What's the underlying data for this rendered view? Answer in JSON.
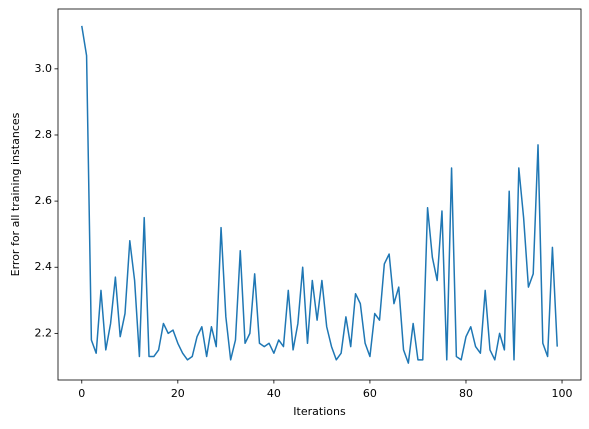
{
  "chart_data": {
    "type": "line",
    "xlabel": "Iterations",
    "ylabel": "Error for all training instances",
    "x": [
      0,
      1,
      2,
      3,
      4,
      5,
      6,
      7,
      8,
      9,
      10,
      11,
      12,
      13,
      14,
      15,
      16,
      17,
      18,
      19,
      20,
      21,
      22,
      23,
      24,
      25,
      26,
      27,
      28,
      29,
      30,
      31,
      32,
      33,
      34,
      35,
      36,
      37,
      38,
      39,
      40,
      41,
      42,
      43,
      44,
      45,
      46,
      47,
      48,
      49,
      50,
      51,
      52,
      53,
      54,
      55,
      56,
      57,
      58,
      59,
      60,
      61,
      62,
      63,
      64,
      65,
      66,
      67,
      68,
      69,
      70,
      71,
      72,
      73,
      74,
      75,
      76,
      77,
      78,
      79,
      80,
      81,
      82,
      83,
      84,
      85,
      86,
      87,
      88,
      89,
      90,
      91,
      92,
      93,
      94,
      95,
      96,
      97,
      98,
      99
    ],
    "values": [
      3.13,
      3.04,
      2.18,
      2.14,
      2.33,
      2.15,
      2.23,
      2.37,
      2.19,
      2.26,
      2.48,
      2.36,
      2.13,
      2.55,
      2.13,
      2.13,
      2.15,
      2.23,
      2.2,
      2.21,
      2.17,
      2.14,
      2.12,
      2.13,
      2.19,
      2.22,
      2.13,
      2.22,
      2.16,
      2.52,
      2.25,
      2.12,
      2.18,
      2.45,
      2.17,
      2.2,
      2.38,
      2.17,
      2.16,
      2.17,
      2.14,
      2.18,
      2.16,
      2.33,
      2.15,
      2.23,
      2.4,
      2.17,
      2.36,
      2.24,
      2.36,
      2.22,
      2.16,
      2.12,
      2.14,
      2.25,
      2.16,
      2.32,
      2.29,
      2.17,
      2.13,
      2.26,
      2.24,
      2.41,
      2.44,
      2.29,
      2.34,
      2.15,
      2.11,
      2.23,
      2.12,
      2.12,
      2.58,
      2.43,
      2.36,
      2.57,
      2.12,
      2.7,
      2.13,
      2.12,
      2.19,
      2.22,
      2.16,
      2.14,
      2.33,
      2.15,
      2.12,
      2.2,
      2.15,
      2.63,
      2.12,
      2.7,
      2.55,
      2.34,
      2.38,
      2.77,
      2.17,
      2.13,
      2.46,
      2.16
    ],
    "color": "#1f77b4",
    "xlim": [
      -4.95,
      103.95
    ],
    "xticks": [
      0,
      20,
      40,
      60,
      80,
      100
    ],
    "ylim": [
      2.059,
      3.181
    ],
    "yticks": [
      2.2,
      2.4,
      2.6,
      2.8,
      {
        "value": 3,
        "label": "3.0"
      }
    ]
  }
}
